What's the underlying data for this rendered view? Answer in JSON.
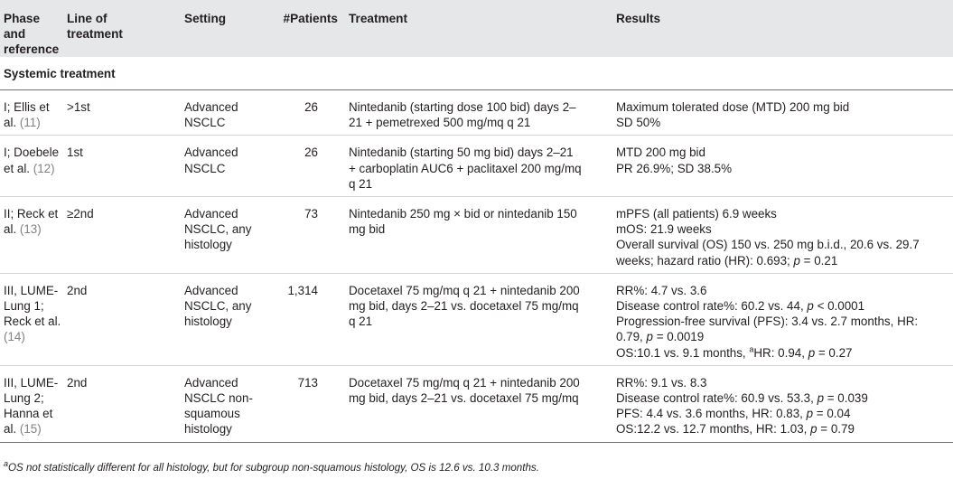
{
  "headers": {
    "phase": "Phase and reference",
    "line": "Line of treatment",
    "setting": "Setting",
    "patients": "#Patients",
    "treatment": "Treatment",
    "results": "Results"
  },
  "section_title": "Systemic treatment",
  "rows": [
    {
      "phase": "I; Ellis et al.",
      "ref": "(11)",
      "line": ">1st",
      "setting": "Advanced NSCLC",
      "patients": "26",
      "treatment": "Nintedanib (starting dose 100 bid) days 2–21 + pemetrexed 500 mg/mq q 21",
      "results": [
        "Maximum tolerated dose (MTD) 200 mg bid",
        "SD 50%"
      ]
    },
    {
      "phase": "I; Doebele et al.",
      "ref": "(12)",
      "line": "1st",
      "setting": "Advanced NSCLC",
      "patients": "26",
      "treatment": "Nintedanib (starting 50 mg bid) days 2–21 + carboplatin AUC6 + paclitaxel 200 mg/mq q 21",
      "results": [
        "MTD 200 mg bid",
        "PR 26.9%; SD 38.5%"
      ]
    },
    {
      "phase": "II; Reck et al.",
      "ref": "(13)",
      "line": "≥2nd",
      "setting": "Advanced NSCLC, any histology",
      "patients": "73",
      "treatment": "Nintedanib 250 mg × bid or nintedanib 150 mg bid",
      "results": [
        "mPFS (all patients) 6.9 weeks",
        "mOS: 21.9 weeks",
        "Overall survival (OS) 150 vs. 250 mg b.i.d., 20.6 vs. 29.7 weeks; hazard ratio (HR): 0.693; p = 0.21"
      ]
    },
    {
      "phase": "III, LUME-Lung 1; Reck et al.",
      "ref": "(14)",
      "line": "2nd",
      "setting": "Advanced NSCLC, any histology",
      "patients": "1,314",
      "treatment": "Docetaxel 75 mg/mq q 21 + nintedanib 200 mg bid, days 2–21 vs. docetaxel 75 mg/mq q 21",
      "results": [
        "RR%: 4.7 vs. 3.6",
        "Disease control rate%: 60.2 vs. 44, p < 0.0001",
        "Progression-free survival (PFS): 3.4 vs. 2.7 months, HR: 0.79, p = 0.0019",
        "OS:10.1 vs. 9.1 months, aHR: 0.94, p = 0.27"
      ]
    },
    {
      "phase": "III, LUME-Lung 2; Hanna et al.",
      "ref": "(15)",
      "line": "2nd",
      "setting": "Advanced NSCLC non-squamous histology",
      "patients": "713",
      "treatment": "Docetaxel 75 mg/mq q 21 + nintedanib 200 mg bid, days 2–21 vs. docetaxel 75 mg/mq",
      "results": [
        "RR%: 9.1 vs. 8.3",
        "Disease control rate%: 60.9 vs. 53.3, p = 0.039",
        "PFS: 4.4 vs. 3.6 months, HR: 0.83, p = 0.04",
        "OS:12.2 vs. 12.7 months, HR: 1.03, p = 0.79"
      ]
    }
  ],
  "footnote": "aOS not statistically different for all histology, but for subgroup non-squamous histology, OS is 12.6 vs. 10.3 months."
}
